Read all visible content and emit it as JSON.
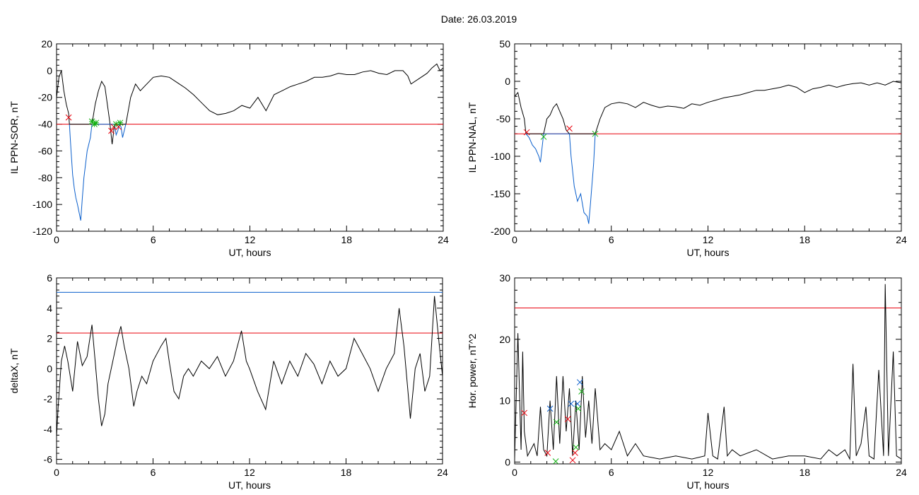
{
  "figure": {
    "date_text": "Date:  26.03.2019"
  },
  "chart_data": [
    {
      "type": "line",
      "panel": "top-left",
      "title": "",
      "xlabel": "UT, hours",
      "ylabel": "IL PPN-SOR, nT",
      "xlim": [
        0,
        24
      ],
      "ylim": [
        -120,
        20
      ],
      "xticks": [
        0,
        6,
        12,
        18,
        24
      ],
      "yticks": [
        -120,
        -100,
        -80,
        -60,
        -40,
        -20,
        0,
        20
      ],
      "hlines": [
        {
          "y": -40,
          "color": "#e8000b"
        }
      ],
      "series": [
        {
          "color": "#000000",
          "x": [
            0,
            0.15,
            0.3,
            0.45,
            0.6,
            0.75,
            0.8,
            2.2,
            2.4,
            2.6,
            2.8,
            3.0,
            3.15,
            3.3,
            3.45,
            3.6,
            4.3,
            4.6,
            4.9,
            5.2,
            5.6,
            6.0,
            6.5,
            7.0,
            7.5,
            8.0,
            8.5,
            9.0,
            9.5,
            10.0,
            10.5,
            11.0,
            11.5,
            12.0,
            12.5,
            13.0,
            13.5,
            14.0,
            14.5,
            15.0,
            15.5,
            16.0,
            16.5,
            17.0,
            17.5,
            18.0,
            18.5,
            19.0,
            19.5,
            20.0,
            20.5,
            21.0,
            21.5,
            21.8,
            22.0,
            22.5,
            23.0,
            23.3,
            23.6,
            23.8,
            24.0
          ],
          "y": [
            -20,
            -5,
            0,
            -15,
            -25,
            -32,
            -40,
            -40,
            -25,
            -15,
            -8,
            -12,
            -25,
            -38,
            -55,
            -40,
            -40,
            -20,
            -10,
            -15,
            -10,
            -5,
            -4,
            -5,
            -9,
            -13,
            -18,
            -24,
            -30,
            -33,
            -32,
            -30,
            -26,
            -28,
            -20,
            -30,
            -18,
            -15,
            -12,
            -10,
            -8,
            -5,
            -5,
            -4,
            -2,
            -3,
            -3,
            -1,
            0,
            -2,
            -3,
            0,
            0,
            -4,
            -10,
            -6,
            -2,
            2,
            5,
            0,
            2
          ]
        },
        {
          "color": "#0a5fcc",
          "x": [
            0.8,
            0.9,
            1.0,
            1.1,
            1.2,
            1.3,
            1.4,
            1.5,
            1.6,
            1.7,
            1.8,
            1.9,
            2.0,
            2.1,
            2.2,
            3.6,
            3.7,
            3.8,
            3.9,
            4.0,
            4.1,
            4.2,
            4.3
          ],
          "y": [
            -40,
            -60,
            -78,
            -88,
            -95,
            -100,
            -106,
            -112,
            -95,
            -80,
            -70,
            -60,
            -55,
            -50,
            -40,
            -40,
            -48,
            -45,
            -40,
            -42,
            -50,
            -45,
            -40
          ]
        }
      ],
      "markers": [
        {
          "x": 0.75,
          "y": -35,
          "color": "#e8000b",
          "symbol": "x"
        },
        {
          "x": 2.2,
          "y": -38,
          "color": "#10b010",
          "symbol": "star"
        },
        {
          "x": 2.35,
          "y": -40,
          "color": "#10b010",
          "symbol": "star"
        },
        {
          "x": 2.45,
          "y": -39,
          "color": "#10b010",
          "symbol": "star"
        },
        {
          "x": 3.4,
          "y": -45,
          "color": "#e8000b",
          "symbol": "x"
        },
        {
          "x": 3.55,
          "y": -42,
          "color": "#e8000b",
          "symbol": "x"
        },
        {
          "x": 3.7,
          "y": -40,
          "color": "#10b010",
          "symbol": "star"
        },
        {
          "x": 3.85,
          "y": -42,
          "color": "#e8000b",
          "symbol": "x"
        },
        {
          "x": 3.95,
          "y": -39,
          "color": "#10b010",
          "symbol": "star"
        }
      ]
    },
    {
      "type": "line",
      "panel": "top-right",
      "title": "",
      "xlabel": "UT, hours",
      "ylabel": "IL PPN-NAL, nT",
      "xlim": [
        0,
        24
      ],
      "ylim": [
        -200,
        50
      ],
      "xticks": [
        0,
        6,
        12,
        18,
        24
      ],
      "yticks": [
        -200,
        -150,
        -100,
        -50,
        0,
        50
      ],
      "hlines": [
        {
          "y": -70,
          "color": "#e8000b"
        }
      ],
      "series": [
        {
          "color": "#000000",
          "x": [
            0,
            0.2,
            0.4,
            0.6,
            0.7,
            1.8,
            2.0,
            2.2,
            2.4,
            2.6,
            2.8,
            3.0,
            3.2,
            3.4,
            5.0,
            5.3,
            5.6,
            6.0,
            6.5,
            7.0,
            7.5,
            8.0,
            8.5,
            9.0,
            9.5,
            10.0,
            10.5,
            11.0,
            11.5,
            12.0,
            12.5,
            13.0,
            13.5,
            14.0,
            14.5,
            15.0,
            15.5,
            16.0,
            16.5,
            17.0,
            17.5,
            18.0,
            18.5,
            19.0,
            19.5,
            20.0,
            20.5,
            21.0,
            21.5,
            22.0,
            22.5,
            23.0,
            23.5,
            24.0
          ],
          "y": [
            -20,
            -15,
            -35,
            -50,
            -70,
            -70,
            -50,
            -45,
            -35,
            -30,
            -40,
            -50,
            -65,
            -70,
            -70,
            -50,
            -35,
            -30,
            -28,
            -30,
            -35,
            -28,
            -32,
            -35,
            -33,
            -34,
            -36,
            -30,
            -32,
            -28,
            -25,
            -22,
            -20,
            -18,
            -15,
            -12,
            -12,
            -10,
            -8,
            -5,
            -8,
            -15,
            -10,
            -8,
            -5,
            -8,
            -5,
            -3,
            -2,
            -5,
            -2,
            -5,
            0,
            -2
          ]
        },
        {
          "color": "#0a5fcc",
          "x": [
            0.7,
            0.9,
            1.1,
            1.3,
            1.5,
            1.6,
            1.8,
            3.4,
            3.5,
            3.7,
            3.9,
            4.1,
            4.3,
            4.5,
            4.6,
            4.7,
            4.9,
            5.0
          ],
          "y": [
            -70,
            -75,
            -85,
            -90,
            -100,
            -108,
            -70,
            -70,
            -100,
            -140,
            -160,
            -150,
            -175,
            -180,
            -190,
            -165,
            -110,
            -70
          ]
        }
      ],
      "markers": [
        {
          "x": 0.75,
          "y": -68,
          "color": "#e8000b",
          "symbol": "x"
        },
        {
          "x": 1.8,
          "y": -74,
          "color": "#10b010",
          "symbol": "x"
        },
        {
          "x": 3.4,
          "y": -63,
          "color": "#e8000b",
          "symbol": "x"
        },
        {
          "x": 5.0,
          "y": -70,
          "color": "#10b010",
          "symbol": "x"
        }
      ]
    },
    {
      "type": "line",
      "panel": "bottom-left",
      "title": "",
      "xlabel": "UT, hours",
      "ylabel": "deltaX, nT",
      "xlim": [
        0,
        24
      ],
      "ylim": [
        -6.3,
        6
      ],
      "xticks": [
        0,
        6,
        12,
        18,
        24
      ],
      "yticks": [
        -6,
        -4,
        -2,
        0,
        2,
        4,
        6
      ],
      "hlines": [
        {
          "y": 5.05,
          "color": "#0a5fcc"
        },
        {
          "y": 2.35,
          "color": "#e8000b"
        }
      ],
      "series": [
        {
          "color": "#000000",
          "x": [
            0,
            0.1,
            0.3,
            0.5,
            0.7,
            1.0,
            1.3,
            1.6,
            1.9,
            2.2,
            2.4,
            2.6,
            2.8,
            3.0,
            3.2,
            3.5,
            3.8,
            4.0,
            4.2,
            4.5,
            4.8,
            5.0,
            5.3,
            5.6,
            6.0,
            6.5,
            6.8,
            7.0,
            7.3,
            7.6,
            7.9,
            8.2,
            8.5,
            9.0,
            9.5,
            10.0,
            10.5,
            11.0,
            11.5,
            11.8,
            12.0,
            12.5,
            13.0,
            13.5,
            14.0,
            14.5,
            15.0,
            15.5,
            16.0,
            16.5,
            17.0,
            17.5,
            18.0,
            18.5,
            19.0,
            19.5,
            20.0,
            20.5,
            21.0,
            21.3,
            21.6,
            22.0,
            22.3,
            22.6,
            22.9,
            23.2,
            23.5,
            23.8,
            24.0
          ],
          "y": [
            -4.5,
            -2.5,
            0.5,
            1.5,
            0.5,
            -1.5,
            1.8,
            0.2,
            0.8,
            2.9,
            0.5,
            -2,
            -3.8,
            -3,
            -1,
            0.5,
            2,
            2.8,
            1.5,
            0,
            -2.5,
            -1.5,
            -0.5,
            -1,
            0.5,
            1.5,
            2,
            0.5,
            -1.5,
            -2,
            -0.5,
            0,
            -0.5,
            0.5,
            0,
            0.8,
            -0.5,
            0.5,
            2.5,
            0.5,
            0,
            -1.5,
            -2.7,
            0.5,
            -1,
            0.5,
            -0.5,
            1,
            0.3,
            -1,
            0.5,
            -0.5,
            0,
            2,
            1,
            0,
            -1.5,
            0,
            1,
            4,
            1.5,
            -3.3,
            0,
            1,
            -1.5,
            -0.5,
            4.8,
            1.5,
            -0.5
          ]
        }
      ],
      "markers": []
    },
    {
      "type": "line",
      "panel": "bottom-right",
      "title": "",
      "xlabel": "UT, hours",
      "ylabel": "Hor. power, nT^2",
      "xlim": [
        0,
        24
      ],
      "ylim": [
        -0.3,
        30
      ],
      "xticks": [
        0,
        6,
        12,
        18,
        24
      ],
      "yticks": [
        0,
        10,
        20,
        30
      ],
      "hlines": [
        {
          "y": 25.1,
          "color": "#e8000b"
        }
      ],
      "series": [
        {
          "color": "#000000",
          "x": [
            0,
            0.2,
            0.4,
            0.5,
            0.6,
            0.8,
            1.0,
            1.2,
            1.4,
            1.6,
            1.8,
            2.0,
            2.2,
            2.4,
            2.6,
            2.8,
            3.0,
            3.2,
            3.4,
            3.6,
            3.8,
            4.0,
            4.2,
            4.4,
            4.6,
            4.8,
            5.0,
            5.3,
            5.6,
            6.0,
            6.5,
            7.0,
            7.5,
            8.0,
            9.0,
            10.0,
            11.0,
            11.8,
            12.0,
            12.3,
            12.6,
            13.0,
            13.2,
            13.5,
            14.0,
            15.0,
            16.0,
            17.0,
            18.0,
            19.0,
            19.5,
            20.0,
            20.5,
            20.8,
            21.0,
            21.2,
            21.5,
            21.8,
            22.0,
            22.3,
            22.6,
            22.9,
            23.0,
            23.2,
            23.5,
            23.7,
            24.0
          ],
          "y": [
            0.5,
            21,
            2,
            18,
            5,
            1,
            2,
            3,
            1,
            9,
            2,
            1,
            10,
            2,
            14,
            3,
            14,
            5,
            12,
            1,
            10,
            2,
            14,
            4,
            10,
            3,
            12,
            2,
            3,
            2,
            5,
            1,
            3,
            1,
            0.5,
            1,
            0.5,
            1,
            8,
            1,
            0.5,
            9,
            1,
            2,
            1,
            2,
            0.5,
            1,
            1,
            0.5,
            2,
            1,
            2,
            0.5,
            16,
            1,
            3,
            9,
            1,
            0.5,
            15,
            1,
            29,
            1,
            18,
            1,
            0.5
          ]
        }
      ],
      "markers": [
        {
          "x": 0.6,
          "y": 8,
          "color": "#e8000b",
          "symbol": "x"
        },
        {
          "x": 2.05,
          "y": 1.5,
          "color": "#e8000b",
          "symbol": "x"
        },
        {
          "x": 2.2,
          "y": 8.7,
          "color": "#0a5fcc",
          "symbol": "x"
        },
        {
          "x": 2.6,
          "y": 6.5,
          "color": "#10b010",
          "symbol": "x"
        },
        {
          "x": 2.55,
          "y": 0.1,
          "color": "#10b010",
          "symbol": "x"
        },
        {
          "x": 3.3,
          "y": 7,
          "color": "#e8000b",
          "symbol": "x"
        },
        {
          "x": 3.5,
          "y": 9.5,
          "color": "#0a5fcc",
          "symbol": "x"
        },
        {
          "x": 3.6,
          "y": 0.3,
          "color": "#e8000b",
          "symbol": "x"
        },
        {
          "x": 3.75,
          "y": 1.5,
          "color": "#e8000b",
          "symbol": "x"
        },
        {
          "x": 3.8,
          "y": 2.4,
          "color": "#10b010",
          "symbol": "x"
        },
        {
          "x": 3.9,
          "y": 9.5,
          "color": "#0a5fcc",
          "symbol": "x"
        },
        {
          "x": 3.95,
          "y": 8.7,
          "color": "#10b010",
          "symbol": "x"
        },
        {
          "x": 4.05,
          "y": 13,
          "color": "#0a5fcc",
          "symbol": "x"
        },
        {
          "x": 4.15,
          "y": 11.5,
          "color": "#10b010",
          "symbol": "x"
        }
      ]
    }
  ]
}
